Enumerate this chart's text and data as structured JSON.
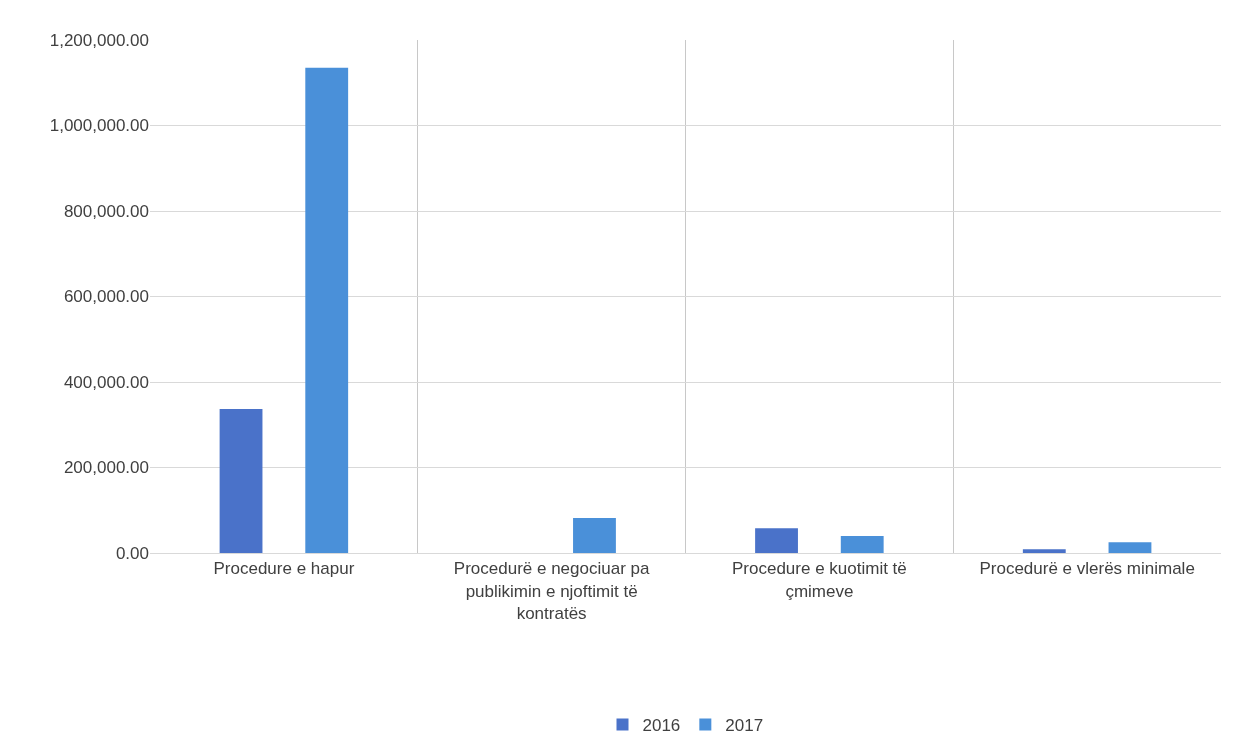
{
  "chart_data": {
    "type": "bar",
    "categories": [
      "Procedure e hapur",
      "Procedurë e negociuar pa publikimin e njoftimit të kontratës",
      "Procedure e kuotimit të çmimeve",
      "Procedurë e vlerës minimale"
    ],
    "series": [
      {
        "name": "2016",
        "color": "#4a72c9",
        "values": [
          337000,
          0,
          58000,
          9000
        ]
      },
      {
        "name": "2017",
        "color": "#4a90d9",
        "values": [
          1135000,
          82000,
          40000,
          25000
        ]
      }
    ],
    "ylim": [
      0,
      1200000
    ],
    "yticks": [
      {
        "value": 0,
        "label": "0.00"
      },
      {
        "value": 200000,
        "label": "200,000.00"
      },
      {
        "value": 400000,
        "label": "400,000.00"
      },
      {
        "value": 600000,
        "label": "600,000.00"
      },
      {
        "value": 800000,
        "label": "800,000.00"
      },
      {
        "value": 1000000,
        "label": "1,000,000.00"
      },
      {
        "value": 1200000,
        "label": "1,200,000.00"
      }
    ],
    "grid": true,
    "legend": "bottom"
  }
}
